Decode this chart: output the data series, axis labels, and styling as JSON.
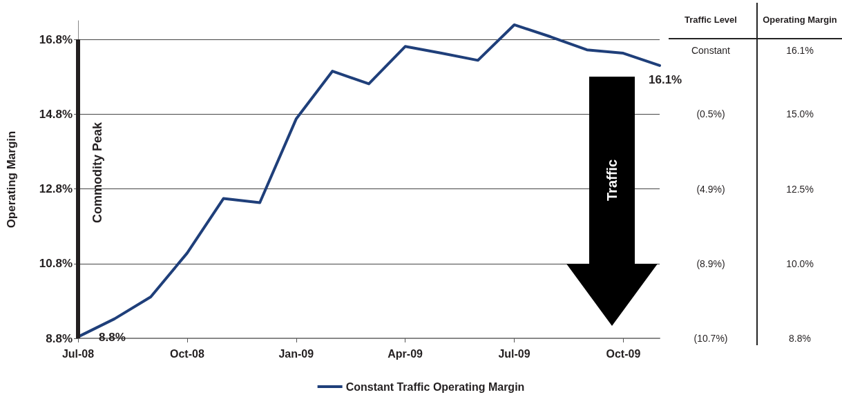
{
  "chart_data": {
    "type": "line",
    "categories": [
      "Jul-08",
      null,
      null,
      "Oct-08",
      null,
      null,
      "Jan-09",
      null,
      null,
      "Apr-09",
      null,
      null,
      "Jul-09",
      null,
      null,
      "Oct-09",
      null
    ],
    "series": [
      {
        "name": "Constant Traffic Operating Margin",
        "color": "#1f3f7a",
        "values": [
          8.84,
          9.32,
          9.91,
          11.08,
          12.54,
          12.43,
          14.67,
          15.95,
          15.61,
          16.61,
          16.43,
          16.24,
          17.19,
          16.87,
          16.52,
          16.43,
          16.1
        ],
        "value_labels": [
          "8.8%",
          null,
          null,
          null,
          null,
          null,
          null,
          null,
          null,
          null,
          null,
          null,
          null,
          null,
          null,
          null,
          "16.1%"
        ]
      }
    ],
    "ylabel": "Operating Margin",
    "ylim": [
      8.8,
      17.3
    ],
    "yticks": [
      {
        "value": 8.8,
        "label": "8.8%"
      },
      {
        "value": 10.8,
        "label": "10.8%"
      },
      {
        "value": 12.8,
        "label": "12.8%"
      },
      {
        "value": 14.8,
        "label": "14.8%"
      },
      {
        "value": 16.8,
        "label": "16.8%"
      }
    ],
    "grid": "y",
    "legend": "bottom",
    "marker": "none",
    "line_style": "solid",
    "ref_lines": [
      {
        "axis": "x",
        "value": "Jul-08",
        "label": "Commodity Peak",
        "color": "#231f20"
      }
    ],
    "annotations": [
      "Traffic",
      "Traffic Level",
      "Operating Margin",
      "Constant",
      "16.1%",
      "(0.5%)",
      "15.0%",
      "(4.9%)",
      "12.5%",
      "(8.9%)",
      "10.0%",
      "(10.7%)",
      "8.8%"
    ]
  }
}
